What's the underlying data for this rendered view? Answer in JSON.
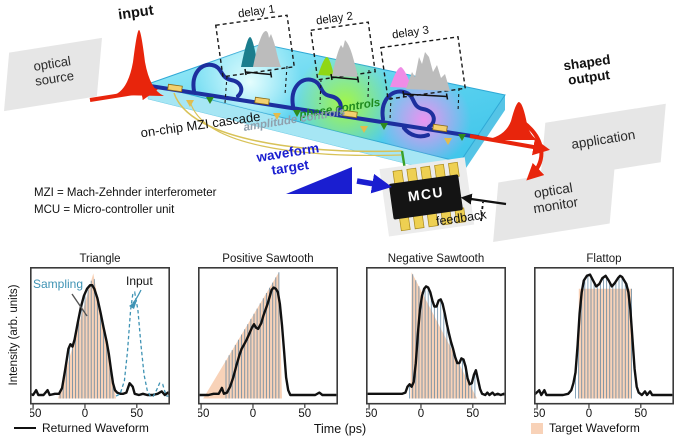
{
  "schematic": {
    "input_label": "input",
    "optical_source": "optical source",
    "delay1": "delay 1",
    "delay2": "delay 2",
    "delay3": "delay 3",
    "shaped_output": "shaped output",
    "application": "application",
    "optical_monitor": "optical monitor",
    "mcu": "MCU",
    "waveform_target": "waveform target",
    "feedback": "feedback",
    "on_chip": "on-chip MZI cascade",
    "phase_controls": "phase controls",
    "amplitude_controls": "amplitude controls",
    "abbrev_mzi": "MZI = Mach-Zehnder interferometer",
    "abbrev_mcu": "MCU = Micro-controller unit",
    "colors": {
      "red": "#e8250c",
      "blue": "#1a1ed0",
      "chip": "#5fd4f0",
      "waveguide": "#1d2f9e"
    }
  },
  "chart_data": {
    "type": "line",
    "x_range": [
      -53,
      82
    ],
    "x_ticks": [
      -50,
      0,
      50
    ],
    "xlabel": "Time (ps)",
    "ylabel": "Intensity (arb. units)",
    "legend": {
      "returned": "Returned Waveform",
      "target": "Target Waveform"
    },
    "colors": {
      "returned": "#111111",
      "target": "#f8d2b8",
      "sampling": "#57809c",
      "input": "#3f93b4",
      "frame": "#3a3a3a"
    },
    "sampling_step": 3,
    "panels": [
      {
        "title": "Triangle",
        "annotations": {
          "sampling": "Sampling",
          "input": "Input"
        },
        "target": [
          [
            -26,
            0
          ],
          [
            8,
            1.06
          ],
          [
            30,
            0
          ]
        ],
        "sampling_range": [
          -24,
          29
        ],
        "returned": [
          [
            -53,
            0.04
          ],
          [
            -50,
            0.03
          ],
          [
            -47,
            0.07
          ],
          [
            -45,
            0.03
          ],
          [
            -40,
            0.03
          ],
          [
            -36,
            0.07
          ],
          [
            -34,
            0.03
          ],
          [
            -29,
            0.04
          ],
          [
            -25,
            0.04
          ],
          [
            -22,
            0.09
          ],
          [
            -19,
            0.25
          ],
          [
            -16,
            0.42
          ],
          [
            -14,
            0.46
          ],
          [
            -12,
            0.44
          ],
          [
            -10,
            0.5
          ],
          [
            -7,
            0.64
          ],
          [
            -4,
            0.77
          ],
          [
            -1,
            0.87
          ],
          [
            2,
            0.93
          ],
          [
            5,
            0.96
          ],
          [
            7,
            0.96
          ],
          [
            9,
            0.93
          ],
          [
            12,
            0.85
          ],
          [
            15,
            0.73
          ],
          [
            18,
            0.6
          ],
          [
            21,
            0.48
          ],
          [
            23,
            0.38
          ],
          [
            25,
            0.25
          ],
          [
            27,
            0.13
          ],
          [
            29,
            0.07
          ],
          [
            31,
            0.05
          ],
          [
            34,
            0.04
          ],
          [
            37,
            0.04
          ],
          [
            40,
            0.05
          ],
          [
            43,
            0.13
          ],
          [
            46,
            0.1
          ],
          [
            48,
            0.04
          ],
          [
            52,
            0.03
          ],
          [
            56,
            0.04
          ],
          [
            60,
            0.03
          ],
          [
            65,
            0.03
          ],
          [
            70,
            0.04
          ],
          [
            74,
            0.06
          ],
          [
            77,
            0.03
          ],
          [
            80,
            0.05
          ],
          [
            82,
            0.03
          ]
        ],
        "input": [
          [
            30,
            0.02
          ],
          [
            34,
            0.04
          ],
          [
            38,
            0.15
          ],
          [
            41,
            0.4
          ],
          [
            44,
            0.75
          ],
          [
            46,
            0.88
          ],
          [
            48,
            0.9
          ],
          [
            51,
            0.75
          ],
          [
            54,
            0.45
          ],
          [
            57,
            0.2
          ],
          [
            60,
            0.07
          ],
          [
            63,
            0.02
          ],
          [
            66,
            0.02
          ],
          [
            69,
            0.07
          ],
          [
            72,
            0.13
          ],
          [
            75,
            0.12
          ],
          [
            77,
            0.06
          ],
          [
            79,
            0.02
          ],
          [
            82,
            0.02
          ]
        ]
      },
      {
        "title": "Positive Sawtooth",
        "target": [
          [
            -48,
            0
          ],
          [
            25,
            1.07
          ],
          [
            28,
            0
          ]
        ],
        "sampling_range": [
          -26,
          27
        ],
        "returned": [
          [
            -53,
            0.03
          ],
          [
            -48,
            0.03
          ],
          [
            -43,
            0.03
          ],
          [
            -38,
            0.04
          ],
          [
            -33,
            0.04
          ],
          [
            -30,
            0.09
          ],
          [
            -28,
            0.04
          ],
          [
            -25,
            0.05
          ],
          [
            -22,
            0.1
          ],
          [
            -19,
            0.18
          ],
          [
            -16,
            0.28
          ],
          [
            -13,
            0.37
          ],
          [
            -11,
            0.42
          ],
          [
            -9,
            0.45
          ],
          [
            -6,
            0.5
          ],
          [
            -3,
            0.56
          ],
          [
            -1,
            0.6
          ],
          [
            1,
            0.63
          ],
          [
            3,
            0.6
          ],
          [
            5,
            0.59
          ],
          [
            8,
            0.64
          ],
          [
            10,
            0.7
          ],
          [
            12,
            0.75
          ],
          [
            14,
            0.8
          ],
          [
            16,
            0.86
          ],
          [
            18,
            0.92
          ],
          [
            20,
            0.94
          ],
          [
            22,
            0.93
          ],
          [
            24,
            0.9
          ],
          [
            26,
            0.8
          ],
          [
            28,
            0.62
          ],
          [
            30,
            0.4
          ],
          [
            32,
            0.18
          ],
          [
            34,
            0.07
          ],
          [
            36,
            0.03
          ],
          [
            40,
            0.03
          ],
          [
            45,
            0.03
          ],
          [
            50,
            0.03
          ],
          [
            55,
            0.03
          ],
          [
            60,
            0.03
          ],
          [
            64,
            0.05
          ],
          [
            67,
            0.03
          ],
          [
            72,
            0.03
          ],
          [
            77,
            0.03
          ],
          [
            82,
            0.03
          ]
        ]
      },
      {
        "title": "Negative Sawtooth",
        "target": [
          [
            -10,
            0
          ],
          [
            -9,
            1.07
          ],
          [
            54,
            0
          ]
        ],
        "sampling_range": [
          -11,
          54
        ],
        "returned": [
          [
            -53,
            0.04
          ],
          [
            -48,
            0.04
          ],
          [
            -43,
            0.04
          ],
          [
            -38,
            0.04
          ],
          [
            -33,
            0.04
          ],
          [
            -28,
            0.04
          ],
          [
            -23,
            0.04
          ],
          [
            -18,
            0.04
          ],
          [
            -15,
            0.05
          ],
          [
            -13,
            0.1
          ],
          [
            -11,
            0.12
          ],
          [
            -9,
            0.1
          ],
          [
            -7,
            0.14
          ],
          [
            -5,
            0.3
          ],
          [
            -3,
            0.55
          ],
          [
            -1,
            0.75
          ],
          [
            1,
            0.87
          ],
          [
            3,
            0.93
          ],
          [
            5,
            0.95
          ],
          [
            7,
            0.94
          ],
          [
            9,
            0.9
          ],
          [
            11,
            0.83
          ],
          [
            13,
            0.78
          ],
          [
            15,
            0.78
          ],
          [
            17,
            0.83
          ],
          [
            19,
            0.84
          ],
          [
            21,
            0.8
          ],
          [
            23,
            0.72
          ],
          [
            25,
            0.63
          ],
          [
            27,
            0.55
          ],
          [
            29,
            0.48
          ],
          [
            31,
            0.42
          ],
          [
            33,
            0.35
          ],
          [
            35,
            0.3
          ],
          [
            37,
            0.3
          ],
          [
            39,
            0.34
          ],
          [
            41,
            0.33
          ],
          [
            43,
            0.27
          ],
          [
            45,
            0.17
          ],
          [
            47,
            0.12
          ],
          [
            49,
            0.13
          ],
          [
            51,
            0.2
          ],
          [
            53,
            0.24
          ],
          [
            55,
            0.16
          ],
          [
            57,
            0.08
          ],
          [
            59,
            0.04
          ],
          [
            62,
            0.03
          ],
          [
            64,
            0.05
          ],
          [
            66,
            0.03
          ],
          [
            69,
            0.05
          ],
          [
            71,
            0.03
          ],
          [
            74,
            0.04
          ],
          [
            77,
            0.03
          ],
          [
            80,
            0.04
          ],
          [
            82,
            0.03
          ]
        ]
      },
      {
        "title": "Flattop",
        "target": [
          [
            -10,
            0
          ],
          [
            -9.8,
            0.93
          ],
          [
            41,
            0.93
          ],
          [
            41.2,
            0
          ]
        ],
        "sampling_range": [
          -13,
          42
        ],
        "returned": [
          [
            -53,
            0.03
          ],
          [
            -48,
            0.07
          ],
          [
            -46,
            0.03
          ],
          [
            -43,
            0.07
          ],
          [
            -41,
            0.03
          ],
          [
            -36,
            0.03
          ],
          [
            -30,
            0.03
          ],
          [
            -25,
            0.03
          ],
          [
            -20,
            0.04
          ],
          [
            -17,
            0.07
          ],
          [
            -15,
            0.13
          ],
          [
            -13,
            0.22
          ],
          [
            -11,
            0.45
          ],
          [
            -9,
            0.72
          ],
          [
            -7,
            0.9
          ],
          [
            -5,
            1.0
          ],
          [
            -2,
            1.04
          ],
          [
            1,
            1.05
          ],
          [
            4,
            1.0
          ],
          [
            7,
            0.95
          ],
          [
            10,
            0.97
          ],
          [
            13,
            1.02
          ],
          [
            16,
            1.04
          ],
          [
            19,
            1.0
          ],
          [
            22,
            0.95
          ],
          [
            25,
            0.98
          ],
          [
            28,
            1.02
          ],
          [
            30,
            1.04
          ],
          [
            32,
            1.03
          ],
          [
            34,
            1.0
          ],
          [
            36,
            0.97
          ],
          [
            38,
            0.9
          ],
          [
            40,
            0.75
          ],
          [
            42,
            0.5
          ],
          [
            44,
            0.25
          ],
          [
            46,
            0.1
          ],
          [
            48,
            0.05
          ],
          [
            51,
            0.03
          ],
          [
            54,
            0.06
          ],
          [
            56,
            0.03
          ],
          [
            59,
            0.06
          ],
          [
            61,
            0.03
          ],
          [
            65,
            0.03
          ],
          [
            70,
            0.03
          ],
          [
            75,
            0.03
          ],
          [
            80,
            0.03
          ]
        ]
      }
    ]
  }
}
